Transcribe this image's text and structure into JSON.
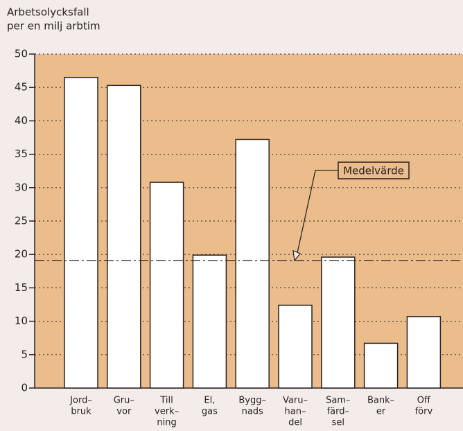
{
  "chart_data": {
    "type": "bar",
    "y_label": [
      "Arbetsolycksfall",
      "per en milj arbtim"
    ],
    "categories": [
      [
        "Jord–",
        "bruk"
      ],
      [
        "Gru–",
        "vor"
      ],
      [
        "Till",
        "verk–",
        "ning"
      ],
      [
        "El,",
        "gas"
      ],
      [
        "Bygg–",
        "nads"
      ],
      [
        "Varu–",
        "han–",
        "del"
      ],
      [
        "Sam–",
        "färd–",
        "sel"
      ],
      [
        "Bank–",
        "er"
      ],
      [
        "Off",
        "förv"
      ]
    ],
    "values": [
      46.5,
      45.3,
      30.8,
      19.9,
      37.2,
      12.4,
      19.6,
      6.7,
      10.7
    ],
    "color": "#ffffff",
    "ylim": [
      0,
      50
    ],
    "yticks": [
      0,
      5,
      10,
      15,
      20,
      25,
      30,
      35,
      40,
      45,
      50
    ],
    "grid": true,
    "annotations": [
      {
        "text": "Medelvärde",
        "value": 19.1
      }
    ]
  }
}
